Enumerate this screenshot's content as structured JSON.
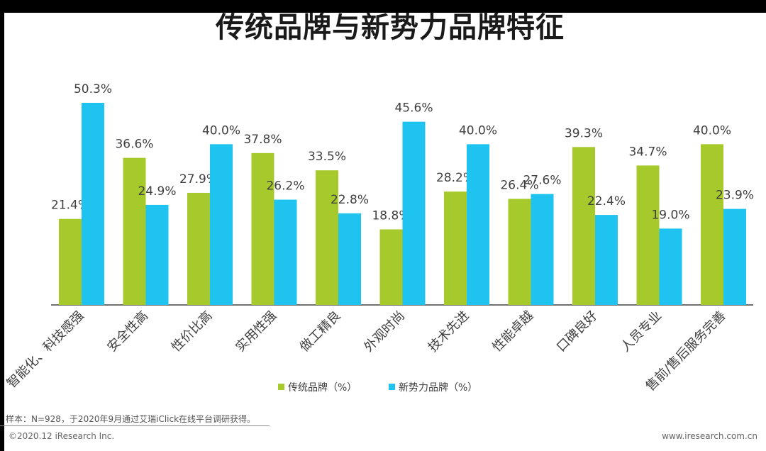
{
  "title": "传统品牌与新势力品牌特征",
  "note": "样本：N=928，于2020年9月通过艾瑞iClick在线平台调研获得。",
  "footer": {
    "copyright": "©2020.12 iResearch Inc.",
    "website": "www.iresearch.com.cn"
  },
  "colors": {
    "traditional": "#a6c92c",
    "newforce": "#1ec4ef",
    "axis": "#404040"
  },
  "chart_data": {
    "type": "bar",
    "title": "传统品牌与新势力品牌特征",
    "categories": [
      "智能化、科技感强",
      "安全性高",
      "性价比高",
      "实用性强",
      "做工精良",
      "外观时尚",
      "技术先进",
      "性能卓越",
      "口碑良好",
      "人员专业",
      "售前/售后服务完善"
    ],
    "series": [
      {
        "name": "传统品牌（%）",
        "values": [
          21.4,
          36.6,
          27.9,
          37.8,
          33.5,
          18.8,
          28.2,
          26.4,
          39.3,
          34.7,
          40.0
        ]
      },
      {
        "name": "新势力品牌（%）",
        "values": [
          50.3,
          24.9,
          40.0,
          26.2,
          22.8,
          45.6,
          40.0,
          27.6,
          22.4,
          19.0,
          23.9
        ]
      }
    ],
    "ylim": [
      0,
      50.3
    ],
    "xlabel": "",
    "ylabel": "",
    "legend": "bottom-center",
    "value_suffix": "%",
    "grid": false
  }
}
